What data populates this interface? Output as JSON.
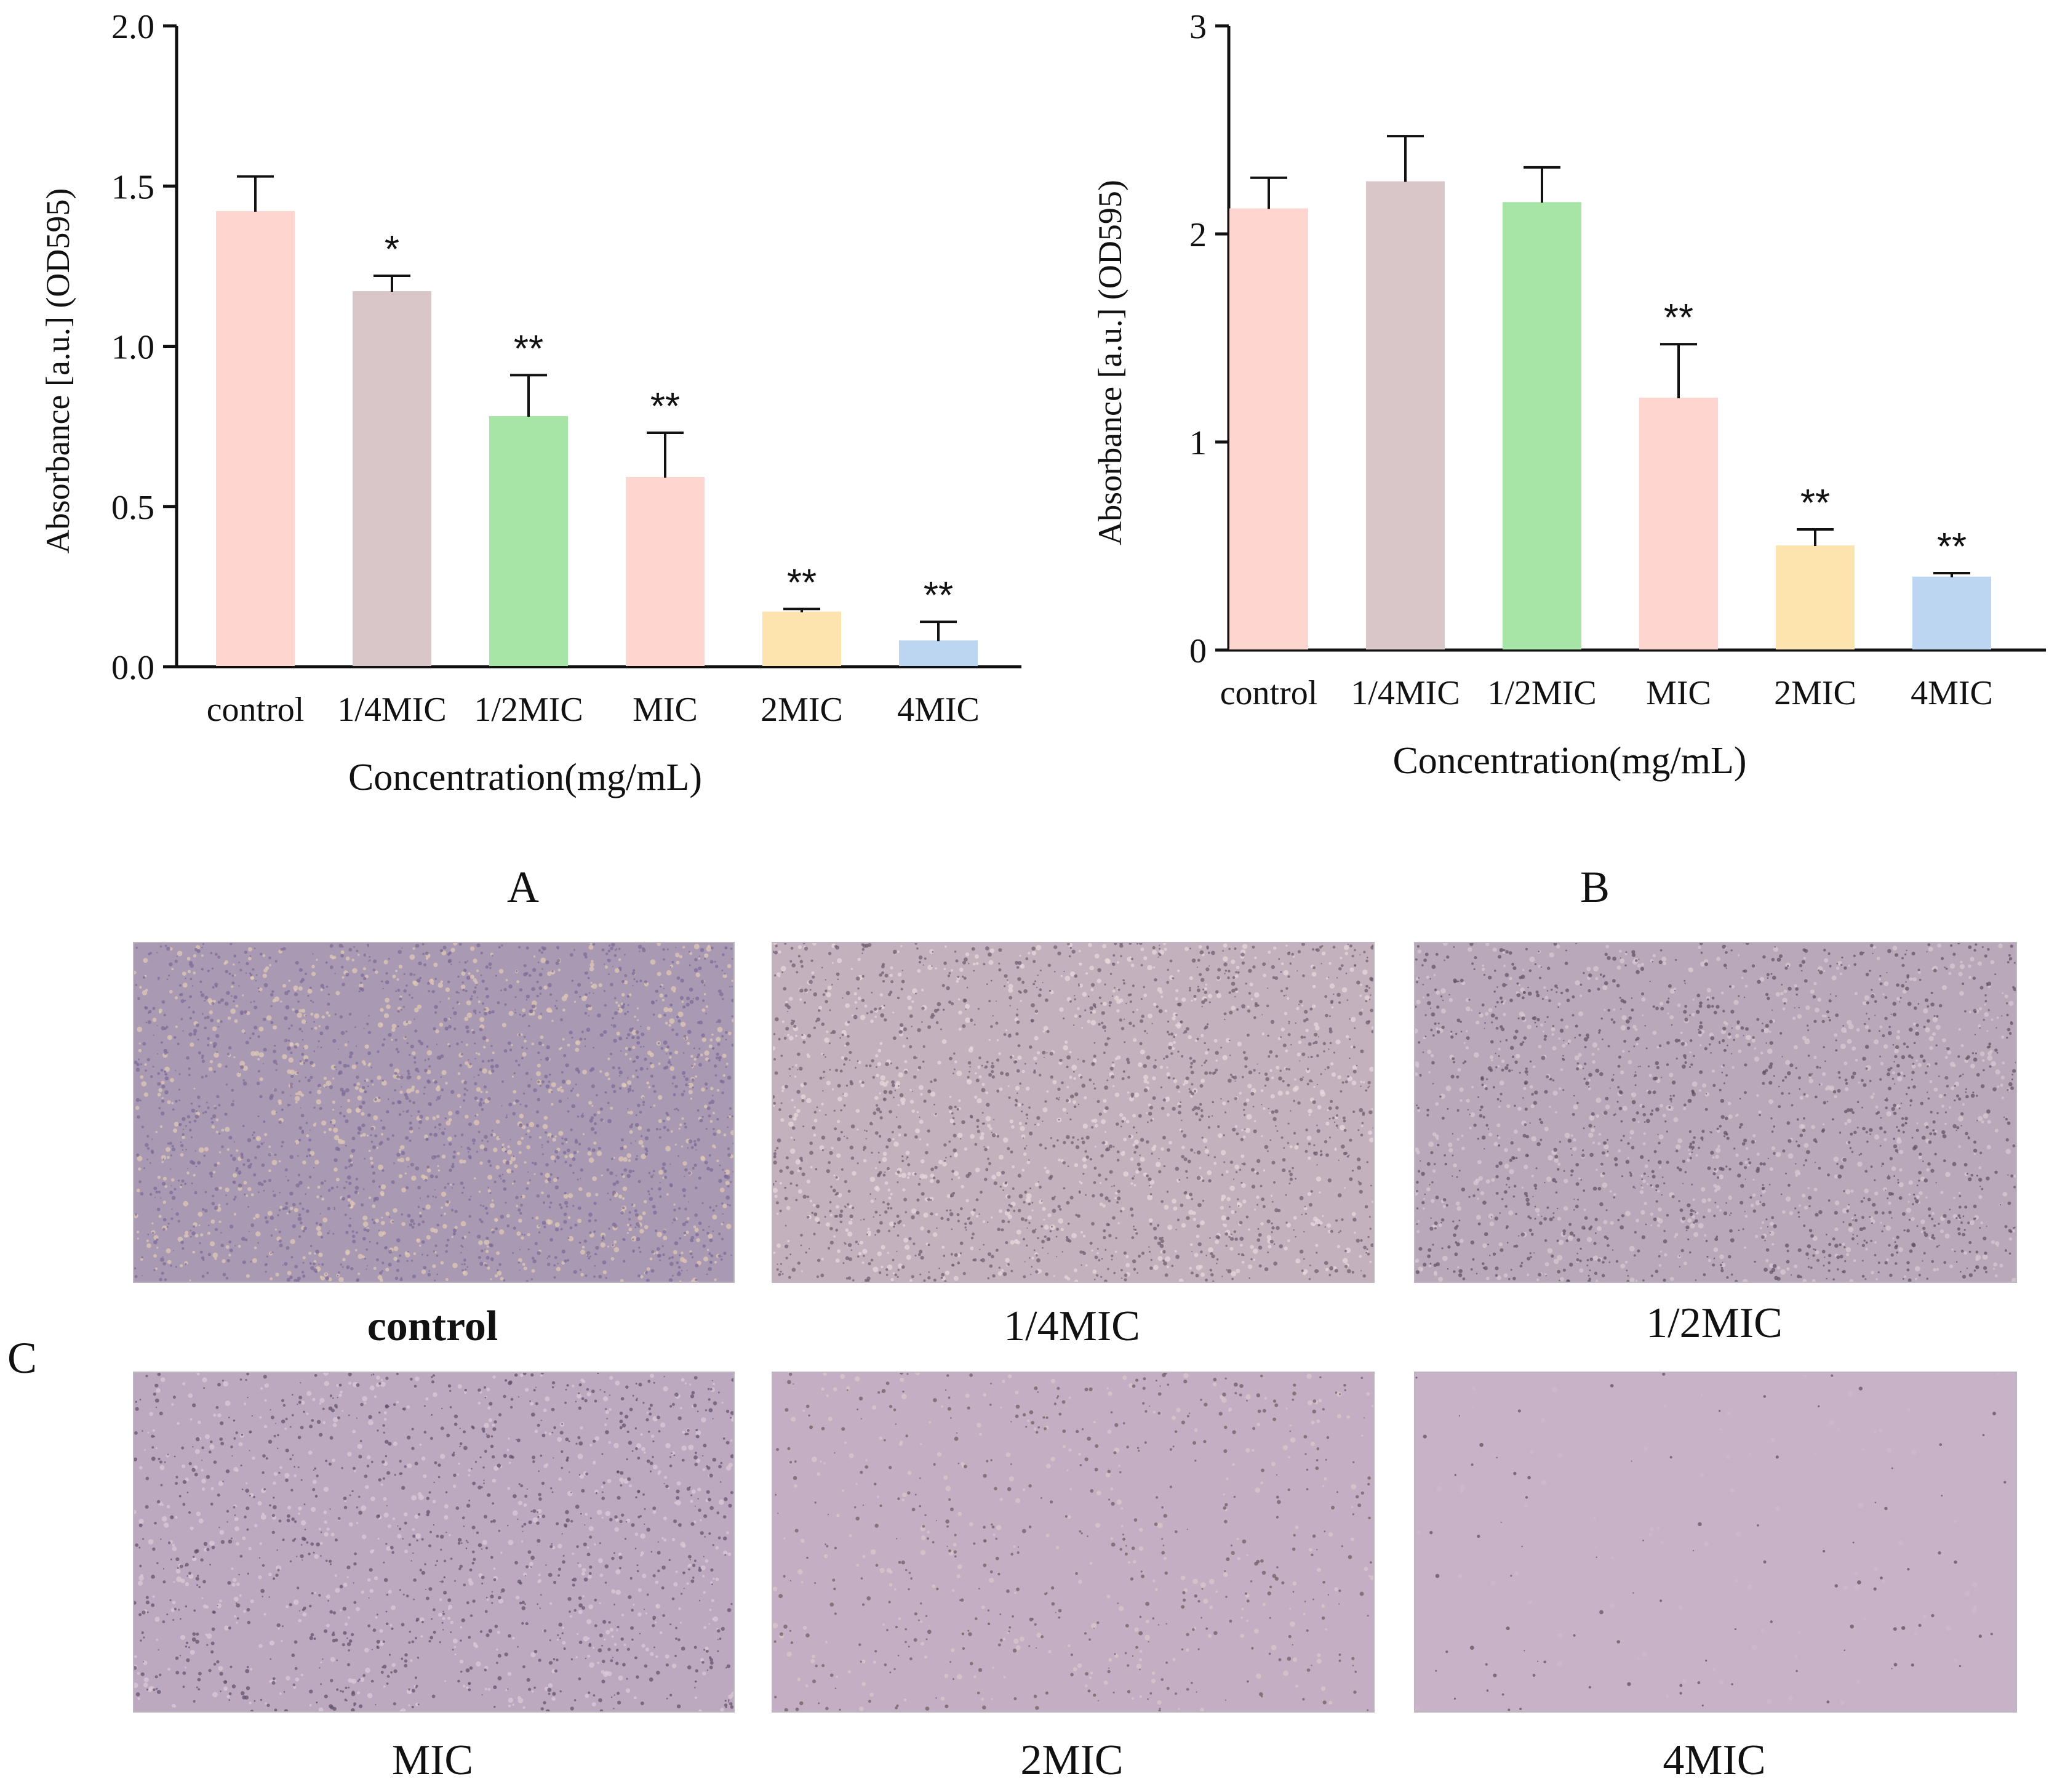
{
  "chart_data": [
    {
      "type": "bar",
      "panel": "A",
      "categories": [
        "control",
        "1/4MIC",
        "1/2MIC",
        "MIC",
        "2MIC",
        "4MIC"
      ],
      "values": [
        1.42,
        1.17,
        0.78,
        0.59,
        0.17,
        0.08
      ],
      "errors": [
        0.11,
        0.05,
        0.13,
        0.14,
        0.01,
        0.06
      ],
      "significance": [
        "",
        "*",
        "**",
        "**",
        "**",
        "**"
      ],
      "colors": [
        "#ffd5cf",
        "#d9c6c8",
        "#a6e5a6",
        "#ffd5cf",
        "#fde3ad",
        "#bcd5f0"
      ],
      "xlabel": "Concentration(mg/mL)",
      "ylabel": "Absorbance [a.u.] (OD595)",
      "ylim": [
        0,
        2.0
      ],
      "yticks": [
        0,
        0.5,
        1.0,
        1.5,
        2.0
      ],
      "yticklabels": [
        "0.0",
        "0.5",
        "1.0",
        "1.5",
        "2.0"
      ]
    },
    {
      "type": "bar",
      "panel": "B",
      "categories": [
        "control",
        "1/4MIC",
        "1/2MIC",
        "MIC",
        "2MIC",
        "4MIC"
      ],
      "values": [
        2.12,
        2.25,
        2.15,
        1.21,
        0.5,
        0.35
      ],
      "errors": [
        0.15,
        0.22,
        0.17,
        0.26,
        0.08,
        0.02
      ],
      "significance": [
        "",
        "",
        "",
        "**",
        "**",
        "**"
      ],
      "colors": [
        "#ffd5cf",
        "#d9c6c8",
        "#a6e5a6",
        "#ffd5cf",
        "#fde3ad",
        "#bcd5f0"
      ],
      "xlabel": "Concentration(mg/mL)",
      "ylabel": "Absorbance [a.u.] (OD595)",
      "ylim": [
        0,
        3
      ],
      "yticks": [
        0,
        1,
        2,
        3
      ],
      "yticklabels": [
        "0",
        "1",
        "2",
        "3"
      ]
    }
  ],
  "panels": {
    "a": "A",
    "b": "B",
    "c": "C"
  },
  "micrographs": [
    {
      "caption": "control",
      "bg": "#a999b3",
      "dots": "#7c6a95",
      "light": "#e0c9b6",
      "density": 1.0
    },
    {
      "caption": "1/4MIC",
      "bg": "#c3b1bd",
      "dots": "#6c5a6e",
      "light": "#e6d8dc",
      "density": 0.85
    },
    {
      "caption": "1/2MIC",
      "bg": "#b9a8ba",
      "dots": "#5e4e63",
      "light": "#d8c8d2",
      "density": 0.8
    },
    {
      "caption": "MIC",
      "bg": "#bca9c0",
      "dots": "#5e4e68",
      "light": "#d9c9d6",
      "density": 0.6
    },
    {
      "caption": "2MIC",
      "bg": "#c4aec4",
      "dots": "#6a5a5e",
      "light": "#d8c7cc",
      "density": 0.25
    },
    {
      "caption": "4MIC",
      "bg": "#c8b2c7",
      "dots": "#5c4c58",
      "light": "#cfbacc",
      "density": 0.03
    }
  ]
}
